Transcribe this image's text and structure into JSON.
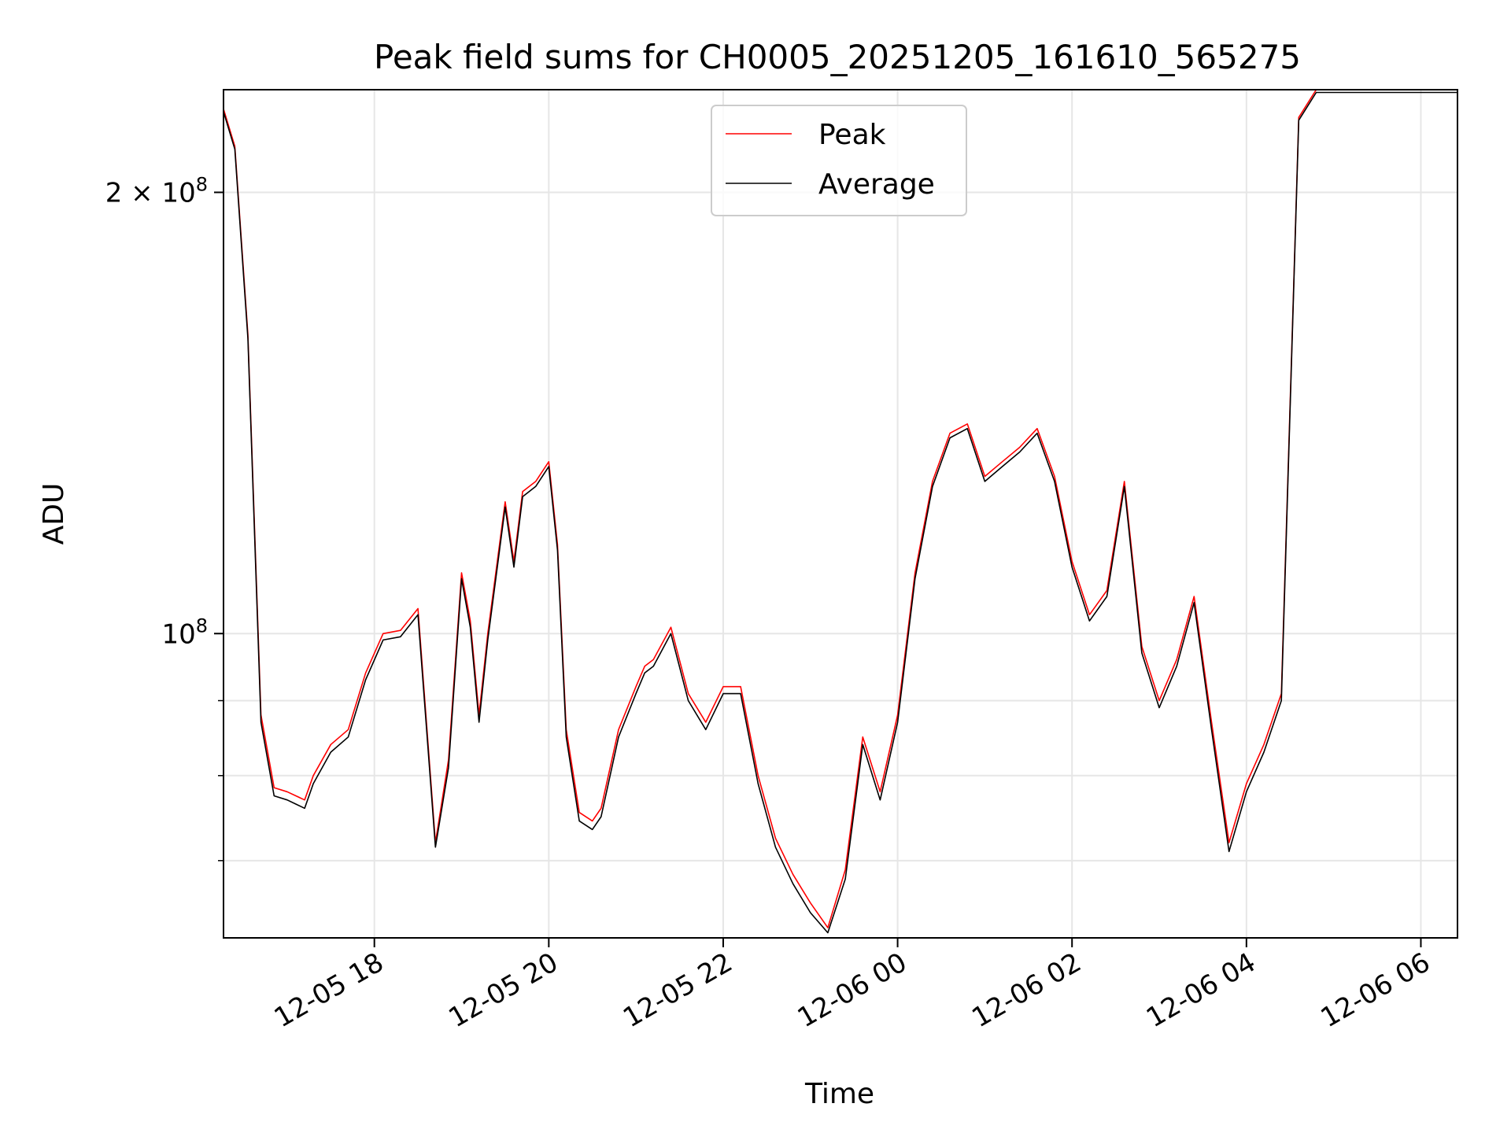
{
  "chart_data": {
    "type": "line",
    "title": "Peak field sums for CH0005_20251205_161610_565275",
    "xlabel": "Time",
    "ylabel": "ADU",
    "yscale": "log",
    "ylim": [
      62000000,
      235000000
    ],
    "xlim_hours": [
      16.27,
      30.42
    ],
    "x_unit": "hours since 2025-12-05 00:00",
    "grid": true,
    "legend_position": "upper-center",
    "x_ticks": [
      {
        "value": 18,
        "label": "12-05 18"
      },
      {
        "value": 20,
        "label": "12-05 20"
      },
      {
        "value": 22,
        "label": "12-05 22"
      },
      {
        "value": 24,
        "label": "12-06 00"
      },
      {
        "value": 26,
        "label": "12-06 02"
      },
      {
        "value": 28,
        "label": "12-06 04"
      },
      {
        "value": 30,
        "label": "12-06 06"
      }
    ],
    "y_major_ticks": [
      {
        "value": 100000000,
        "label_base": "10",
        "label_exp": "8",
        "label_coef": ""
      },
      {
        "value": 200000000,
        "label_base": "10",
        "label_exp": "8",
        "label_coef": "2 × "
      }
    ],
    "y_minor_gridlines": [
      70000000,
      80000000,
      90000000
    ],
    "series": [
      {
        "name": "Peak",
        "color": "#ff0000",
        "x": [
          16.27,
          16.4,
          16.55,
          16.7,
          16.85,
          17.0,
          17.1,
          17.2,
          17.3,
          17.5,
          17.7,
          17.9,
          18.1,
          18.3,
          18.5,
          18.7,
          18.85,
          19.0,
          19.1,
          19.2,
          19.3,
          19.5,
          19.6,
          19.7,
          19.85,
          20.0,
          20.1,
          20.2,
          20.35,
          20.5,
          20.6,
          20.8,
          21.0,
          21.1,
          21.2,
          21.4,
          21.6,
          21.8,
          22.0,
          22.2,
          22.4,
          22.6,
          22.8,
          23.0,
          23.2,
          23.4,
          23.6,
          23.8,
          24.0,
          24.2,
          24.4,
          24.6,
          24.8,
          25.0,
          25.2,
          25.4,
          25.6,
          25.8,
          26.0,
          26.2,
          26.4,
          26.6,
          26.8,
          27.0,
          27.2,
          27.4,
          27.6,
          27.8,
          28.0,
          28.2,
          28.4,
          28.6,
          28.8,
          29.0,
          29.2,
          29.4,
          29.6,
          29.8,
          30.0,
          30.2,
          30.42
        ],
        "values": [
          228000000,
          215000000,
          160000000,
          88000000,
          78500000,
          78000000,
          77500000,
          77000000,
          80000000,
          84000000,
          86000000,
          94000000,
          100000000,
          100500000,
          104000000,
          72000000,
          82000000,
          110000000,
          102000000,
          88000000,
          100000000,
          123000000,
          112000000,
          125000000,
          127000000,
          131000000,
          115000000,
          86000000,
          75500000,
          74500000,
          76000000,
          86000000,
          92000000,
          95000000,
          96000000,
          101000000,
          91000000,
          87000000,
          92000000,
          92000000,
          80000000,
          72500000,
          68500000,
          65500000,
          63000000,
          69000000,
          85000000,
          78000000,
          88000000,
          110000000,
          127000000,
          137000000,
          139000000,
          128000000,
          131000000,
          134000000,
          138000000,
          128000000,
          112000000,
          103000000,
          107000000,
          127000000,
          98000000,
          90000000,
          96000000,
          106000000,
          87000000,
          72000000,
          79000000,
          84000000,
          91000000,
          225000000,
          235000000,
          235000000,
          235000000,
          235000000,
          235000000,
          235000000,
          235000000,
          235000000,
          235000000
        ]
      },
      {
        "name": "Average",
        "color": "#000000",
        "x": [
          16.27,
          16.4,
          16.55,
          16.7,
          16.85,
          17.0,
          17.1,
          17.2,
          17.3,
          17.5,
          17.7,
          17.9,
          18.1,
          18.3,
          18.5,
          18.7,
          18.85,
          19.0,
          19.1,
          19.2,
          19.3,
          19.5,
          19.6,
          19.7,
          19.85,
          20.0,
          20.1,
          20.2,
          20.35,
          20.5,
          20.6,
          20.8,
          21.0,
          21.1,
          21.2,
          21.4,
          21.6,
          21.8,
          22.0,
          22.2,
          22.4,
          22.6,
          22.8,
          23.0,
          23.2,
          23.4,
          23.6,
          23.8,
          24.0,
          24.2,
          24.4,
          24.6,
          24.8,
          25.0,
          25.2,
          25.4,
          25.6,
          25.8,
          26.0,
          26.2,
          26.4,
          26.6,
          26.8,
          27.0,
          27.2,
          27.4,
          27.6,
          27.8,
          28.0,
          28.2,
          28.4,
          28.6,
          28.8,
          29.0,
          29.2,
          29.4,
          29.6,
          29.8,
          30.0,
          30.2,
          30.42
        ],
        "values": [
          227000000,
          214000000,
          159000000,
          87000000,
          77500000,
          77000000,
          76500000,
          76000000,
          79000000,
          83000000,
          85000000,
          93000000,
          99000000,
          99500000,
          103000000,
          71500000,
          81000000,
          109000000,
          101000000,
          87000000,
          99000000,
          122000000,
          111000000,
          124000000,
          126000000,
          130000000,
          114000000,
          85000000,
          74500000,
          73500000,
          75000000,
          85000000,
          91000000,
          94000000,
          95000000,
          100000000,
          90000000,
          86000000,
          91000000,
          91000000,
          79000000,
          71500000,
          67500000,
          64500000,
          62500000,
          68000000,
          84000000,
          77000000,
          87000000,
          109000000,
          126000000,
          136000000,
          138000000,
          127000000,
          130000000,
          133000000,
          137000000,
          127000000,
          111000000,
          102000000,
          106000000,
          126000000,
          97000000,
          89000000,
          95000000,
          105000000,
          86000000,
          71000000,
          78000000,
          83000000,
          90000000,
          224000000,
          234000000,
          234000000,
          234000000,
          234000000,
          234000000,
          234000000,
          234000000,
          234000000,
          234000000
        ]
      }
    ]
  }
}
